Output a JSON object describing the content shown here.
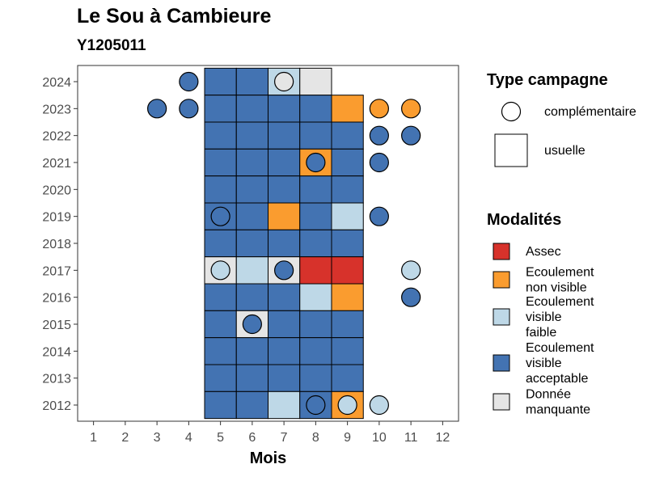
{
  "chart_data": {
    "type": "heatmap",
    "title": "Le Sou à Cambieure",
    "subtitle": "Y1205011",
    "xlabel": "Mois",
    "ylabel": "",
    "x_ticks": [
      1,
      2,
      3,
      4,
      5,
      6,
      7,
      8,
      9,
      10,
      11,
      12
    ],
    "y_ticks": [
      2012,
      2013,
      2014,
      2015,
      2016,
      2017,
      2018,
      2019,
      2020,
      2021,
      2022,
      2023,
      2024
    ],
    "xlim": [
      0.5,
      12.5
    ],
    "ylim": [
      2011.4,
      2024.6
    ],
    "grid": false,
    "legend_position": "right",
    "legend_shape": {
      "title": "Type campagne",
      "entries": [
        {
          "key": "complementaire",
          "label": "complémentaire",
          "shape": "circle"
        },
        {
          "key": "usuelle",
          "label": "usuelle",
          "shape": "square"
        }
      ]
    },
    "legend_modalites": {
      "title": "Modalités",
      "entries": [
        {
          "key": "assec",
          "lines": [
            "Assec"
          ],
          "color": "#d7322b"
        },
        {
          "key": "env",
          "lines": [
            "Ecoulement",
            "non visible"
          ],
          "color": "#fa9c2f"
        },
        {
          "key": "evf",
          "lines": [
            "Ecoulement",
            "visible",
            "faible"
          ],
          "color": "#bed8e7"
        },
        {
          "key": "eva",
          "lines": [
            "Ecoulement",
            "visible",
            "acceptable"
          ],
          "color": "#4373b2"
        },
        {
          "key": "dm",
          "lines": [
            "Donnée",
            "manquante"
          ],
          "color": "#e5e5e5"
        }
      ]
    },
    "usuelle": [
      {
        "year": 2024,
        "month": 5,
        "m": "eva"
      },
      {
        "year": 2024,
        "month": 6,
        "m": "eva"
      },
      {
        "year": 2024,
        "month": 7,
        "m": "evf"
      },
      {
        "year": 2024,
        "month": 8,
        "m": "dm"
      },
      {
        "year": 2023,
        "month": 5,
        "m": "eva"
      },
      {
        "year": 2023,
        "month": 6,
        "m": "eva"
      },
      {
        "year": 2023,
        "month": 7,
        "m": "eva"
      },
      {
        "year": 2023,
        "month": 8,
        "m": "eva"
      },
      {
        "year": 2023,
        "month": 9,
        "m": "env"
      },
      {
        "year": 2022,
        "month": 5,
        "m": "eva"
      },
      {
        "year": 2022,
        "month": 6,
        "m": "eva"
      },
      {
        "year": 2022,
        "month": 7,
        "m": "eva"
      },
      {
        "year": 2022,
        "month": 8,
        "m": "eva"
      },
      {
        "year": 2022,
        "month": 9,
        "m": "eva"
      },
      {
        "year": 2021,
        "month": 5,
        "m": "eva"
      },
      {
        "year": 2021,
        "month": 6,
        "m": "eva"
      },
      {
        "year": 2021,
        "month": 7,
        "m": "eva"
      },
      {
        "year": 2021,
        "month": 8,
        "m": "env"
      },
      {
        "year": 2021,
        "month": 9,
        "m": "eva"
      },
      {
        "year": 2020,
        "month": 5,
        "m": "eva"
      },
      {
        "year": 2020,
        "month": 6,
        "m": "eva"
      },
      {
        "year": 2020,
        "month": 7,
        "m": "eva"
      },
      {
        "year": 2020,
        "month": 8,
        "m": "eva"
      },
      {
        "year": 2020,
        "month": 9,
        "m": "eva"
      },
      {
        "year": 2019,
        "month": 5,
        "m": "eva"
      },
      {
        "year": 2019,
        "month": 6,
        "m": "eva"
      },
      {
        "year": 2019,
        "month": 7,
        "m": "env"
      },
      {
        "year": 2019,
        "month": 8,
        "m": "eva"
      },
      {
        "year": 2019,
        "month": 9,
        "m": "evf"
      },
      {
        "year": 2018,
        "month": 5,
        "m": "eva"
      },
      {
        "year": 2018,
        "month": 6,
        "m": "eva"
      },
      {
        "year": 2018,
        "month": 7,
        "m": "eva"
      },
      {
        "year": 2018,
        "month": 8,
        "m": "eva"
      },
      {
        "year": 2018,
        "month": 9,
        "m": "eva"
      },
      {
        "year": 2017,
        "month": 5,
        "m": "dm"
      },
      {
        "year": 2017,
        "month": 6,
        "m": "evf"
      },
      {
        "year": 2017,
        "month": 7,
        "m": "dm"
      },
      {
        "year": 2017,
        "month": 8,
        "m": "assec"
      },
      {
        "year": 2017,
        "month": 9,
        "m": "assec"
      },
      {
        "year": 2016,
        "month": 5,
        "m": "eva"
      },
      {
        "year": 2016,
        "month": 6,
        "m": "eva"
      },
      {
        "year": 2016,
        "month": 7,
        "m": "eva"
      },
      {
        "year": 2016,
        "month": 8,
        "m": "evf"
      },
      {
        "year": 2016,
        "month": 9,
        "m": "env"
      },
      {
        "year": 2015,
        "month": 5,
        "m": "eva"
      },
      {
        "year": 2015,
        "month": 6,
        "m": "dm"
      },
      {
        "year": 2015,
        "month": 7,
        "m": "eva"
      },
      {
        "year": 2015,
        "month": 8,
        "m": "eva"
      },
      {
        "year": 2015,
        "month": 9,
        "m": "eva"
      },
      {
        "year": 2014,
        "month": 5,
        "m": "eva"
      },
      {
        "year": 2014,
        "month": 6,
        "m": "eva"
      },
      {
        "year": 2014,
        "month": 7,
        "m": "eva"
      },
      {
        "year": 2014,
        "month": 8,
        "m": "eva"
      },
      {
        "year": 2014,
        "month": 9,
        "m": "eva"
      },
      {
        "year": 2013,
        "month": 5,
        "m": "eva"
      },
      {
        "year": 2013,
        "month": 6,
        "m": "eva"
      },
      {
        "year": 2013,
        "month": 7,
        "m": "eva"
      },
      {
        "year": 2013,
        "month": 8,
        "m": "eva"
      },
      {
        "year": 2013,
        "month": 9,
        "m": "eva"
      },
      {
        "year": 2012,
        "month": 5,
        "m": "eva"
      },
      {
        "year": 2012,
        "month": 6,
        "m": "eva"
      },
      {
        "year": 2012,
        "month": 7,
        "m": "evf"
      },
      {
        "year": 2012,
        "month": 8,
        "m": "eva"
      },
      {
        "year": 2012,
        "month": 9,
        "m": "env"
      }
    ],
    "complementaire": [
      {
        "year": 2024,
        "month": 4,
        "m": "eva"
      },
      {
        "year": 2024,
        "month": 7,
        "m": "dm"
      },
      {
        "year": 2023,
        "month": 3,
        "m": "eva"
      },
      {
        "year": 2023,
        "month": 4,
        "m": "eva"
      },
      {
        "year": 2023,
        "month": 10,
        "m": "env"
      },
      {
        "year": 2023,
        "month": 11,
        "m": "env"
      },
      {
        "year": 2022,
        "month": 10,
        "m": "eva"
      },
      {
        "year": 2022,
        "month": 11,
        "m": "eva"
      },
      {
        "year": 2021,
        "month": 8,
        "m": "eva"
      },
      {
        "year": 2021,
        "month": 10,
        "m": "eva"
      },
      {
        "year": 2019,
        "month": 5,
        "m": "eva"
      },
      {
        "year": 2019,
        "month": 10,
        "m": "eva"
      },
      {
        "year": 2017,
        "month": 5,
        "m": "evf"
      },
      {
        "year": 2017,
        "month": 7,
        "m": "eva"
      },
      {
        "year": 2017,
        "month": 11,
        "m": "evf"
      },
      {
        "year": 2016,
        "month": 11,
        "m": "eva"
      },
      {
        "year": 2015,
        "month": 6,
        "m": "eva"
      },
      {
        "year": 2012,
        "month": 8,
        "m": "eva"
      },
      {
        "year": 2012,
        "month": 9,
        "m": "evf"
      },
      {
        "year": 2012,
        "month": 10,
        "m": "evf"
      }
    ]
  }
}
